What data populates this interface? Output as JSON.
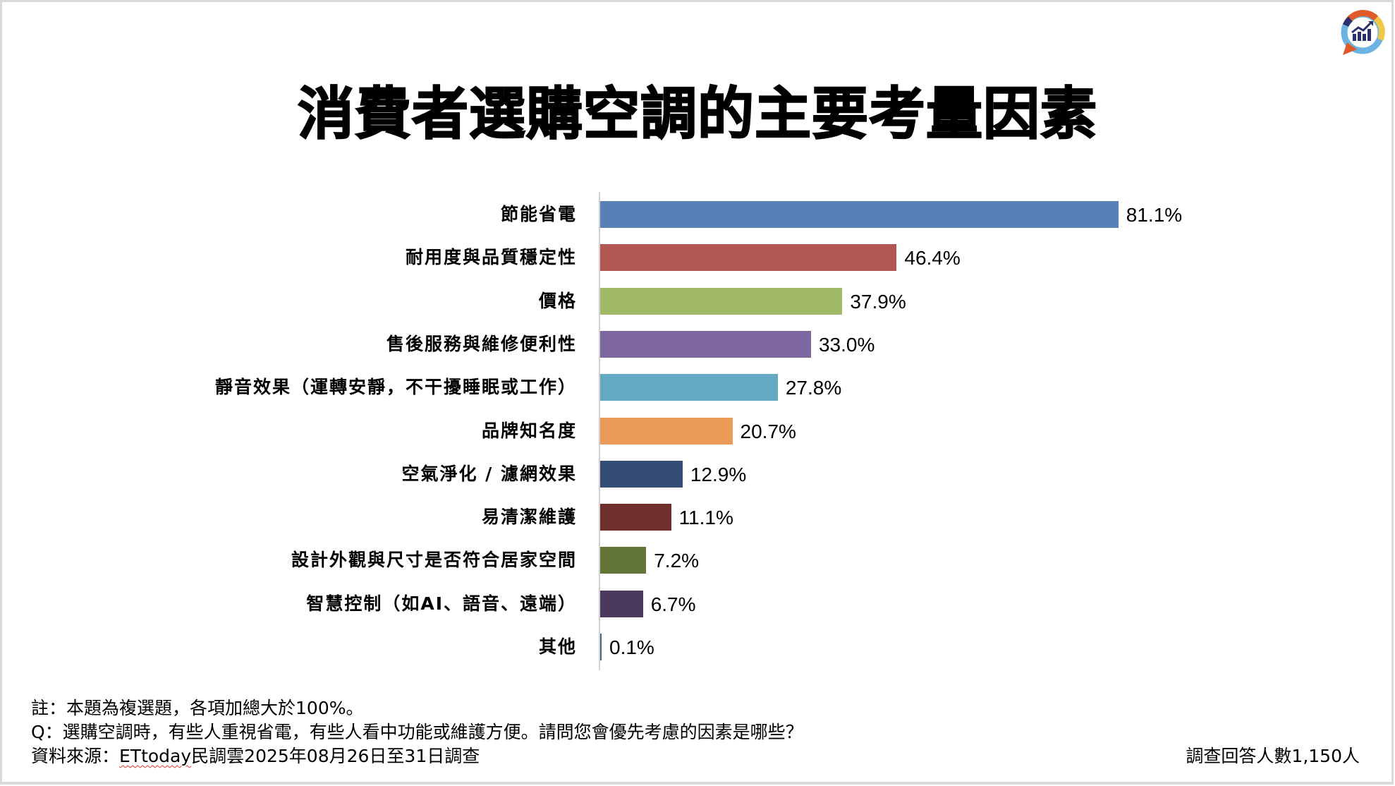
{
  "title": "消費者選購空調的主要考量因素",
  "logo": {
    "icon": "survey-chart-logo-icon",
    "colors": {
      "orange": "#E05A2B",
      "yellow": "#EFC94C",
      "blue": "#6BB3E0",
      "navy": "#2A2F6E"
    }
  },
  "chart_data": {
    "type": "bar",
    "orientation": "horizontal",
    "title": "消費者選購空調的主要考量因素",
    "xlabel": "",
    "ylabel": "",
    "grid": false,
    "legend": null,
    "unit": "%",
    "xlim": [
      0,
      100
    ],
    "categories": [
      "節能省電",
      "耐用度與品質穩定性",
      "價格",
      "售後服務與維修便利性",
      "靜音效果（運轉安靜，不干擾睡眠或工作）",
      "品牌知名度",
      "空氣淨化 / 濾網效果",
      "易清潔維護",
      "設計外觀與尺寸是否符合居家空間",
      "智慧控制（如AI、語音、遠端）",
      "其他"
    ],
    "values": [
      81.1,
      46.4,
      37.9,
      33.0,
      27.8,
      20.7,
      12.9,
      11.1,
      7.2,
      6.7,
      0.1
    ],
    "value_labels": [
      "81.1%",
      "46.4%",
      "37.9%",
      "33.0%",
      "27.8%",
      "20.7%",
      "12.9%",
      "11.1%",
      "7.2%",
      "6.7%",
      "0.1%"
    ],
    "colors": [
      "#587FB6",
      "#B25651",
      "#A1BA67",
      "#7E66A0",
      "#64A9C3",
      "#EB9B57",
      "#334D75",
      "#6F2F2D",
      "#627536",
      "#4B3A5E",
      "#41677F"
    ]
  },
  "footnotes": {
    "note": "註：本題為複選題，各項加總大於100%。",
    "question": "Q：選購空調時，有些人重視省電，有些人看中功能或維護方便。請問您會優先考慮的因素是哪些？",
    "source_prefix": "資料來源：",
    "source_brand": "ETtoday",
    "source_suffix": "民調雲2025年08月26日至31日調查",
    "respondents": "調查回答人數1,150人"
  }
}
